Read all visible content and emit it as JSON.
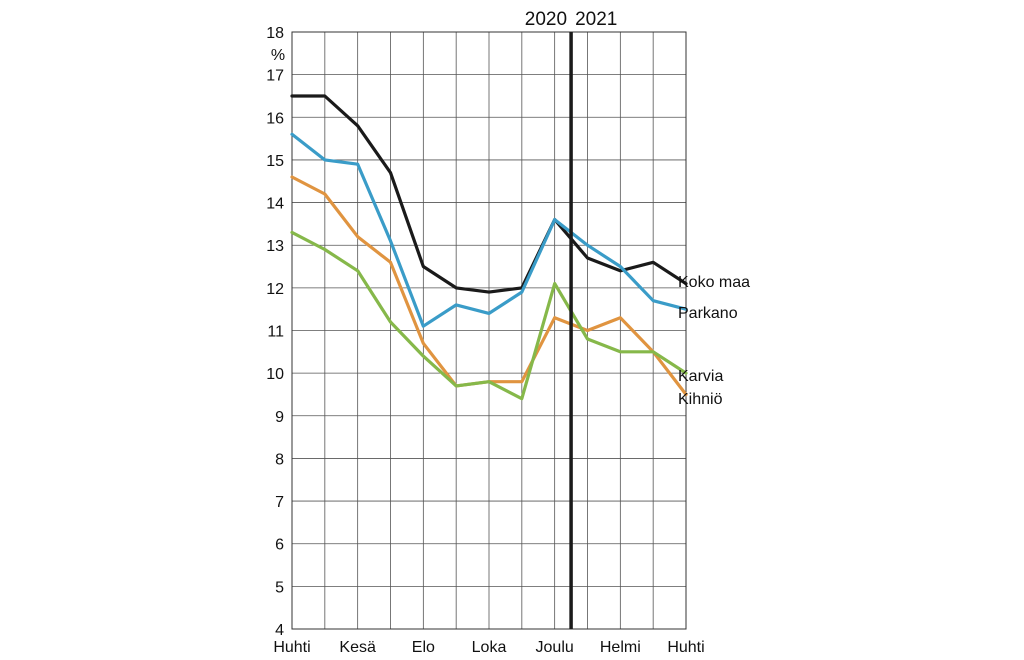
{
  "chart_data": {
    "type": "line",
    "unit": "%",
    "ylim": [
      4,
      18
    ],
    "yticks": [
      4,
      5,
      6,
      7,
      8,
      9,
      10,
      11,
      12,
      13,
      14,
      15,
      16,
      17,
      18
    ],
    "x_tick_labels": [
      "Huhti",
      "Kesä",
      "Elo",
      "Loka",
      "Joulu",
      "Helmi",
      "Huhti"
    ],
    "x_count": 13,
    "year_labels": [
      "2020",
      "2021"
    ],
    "year_divider_after_index": 8,
    "grid": true,
    "series": [
      {
        "name": "Koko maa",
        "color": "#1a1a1a",
        "values": [
          16.5,
          16.5,
          15.8,
          14.7,
          12.5,
          12.0,
          11.9,
          12.0,
          13.6,
          12.7,
          12.4,
          12.6,
          12.1
        ]
      },
      {
        "name": "Parkano",
        "color": "#3a9cc8",
        "values": [
          15.6,
          15.0,
          14.9,
          13.1,
          11.1,
          11.6,
          11.4,
          11.9,
          13.6,
          13.0,
          12.5,
          11.7,
          11.5
        ]
      },
      {
        "name": "Karvia",
        "color": "#86b84a",
        "values": [
          13.3,
          12.9,
          12.4,
          11.2,
          10.4,
          9.7,
          9.8,
          9.4,
          12.1,
          10.8,
          10.5,
          10.5,
          10.0
        ]
      },
      {
        "name": "Kihniö",
        "color": "#e09440",
        "values": [
          14.6,
          14.2,
          13.2,
          12.6,
          10.7,
          9.7,
          9.8,
          9.8,
          11.3,
          11.0,
          11.3,
          10.5,
          9.5
        ]
      }
    ]
  }
}
